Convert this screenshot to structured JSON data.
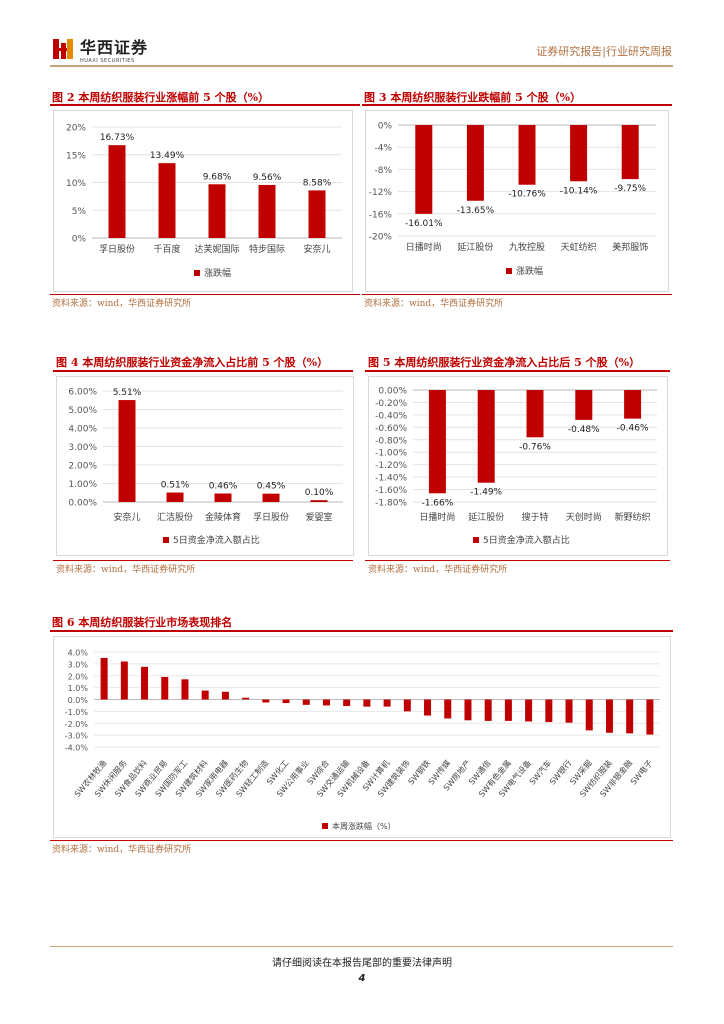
{
  "header": {
    "brand_cn": "华西证券",
    "brand_en": "HUAXI SECURITIES",
    "report_type": "证券研究报告|行业研究周报"
  },
  "colors": {
    "bar": "#c00000",
    "accent": "#c00000",
    "header": "#b07040"
  },
  "figures": {
    "fig2": {
      "title": "图 2 本周纺织服装行业涨幅前 5 个股（%）",
      "source": "资料来源：wind，华西证券研究所"
    },
    "fig3": {
      "title": "图 3 本周纺织服装行业跌幅前 5 个股（%）",
      "source": "资料来源：wind，华西证券研究所"
    },
    "fig4": {
      "title": "图 4 本周纺织服装行业资金净流入占比前 5 个股（%）",
      "source": "资料来源：wind，华西证券研究所"
    },
    "fig5": {
      "title": "图 5 本周纺织服装行业资金净流入占比后 5 个股（%）",
      "source": "资料来源：wind，华西证券研究所"
    },
    "fig6": {
      "title": "图 6 本周纺织服装行业市场表现排名",
      "source": "资料来源：wind，华西证券研究所"
    }
  },
  "chart_data": [
    {
      "id": "fig2",
      "type": "bar",
      "categories": [
        "孚日股份",
        "千百度",
        "达芙妮国际",
        "特步国际",
        "安奈儿"
      ],
      "values": [
        16.73,
        13.49,
        9.68,
        9.56,
        8.58
      ],
      "labels": [
        "16.73%",
        "13.49%",
        "9.68%",
        "9.56%",
        "8.58%"
      ],
      "yticks": [
        "20%",
        "15%",
        "10%",
        "5%",
        "0%"
      ],
      "ylim": [
        0,
        20
      ],
      "legend": "涨跌幅"
    },
    {
      "id": "fig3",
      "type": "bar",
      "categories": [
        "日播时尚",
        "延江股份",
        "九牧控股",
        "天虹纺织",
        "美邦服饰"
      ],
      "values": [
        -16.01,
        -13.65,
        -10.76,
        -10.14,
        -9.75
      ],
      "labels": [
        "-16.01%",
        "-13.65%",
        "-10.76%",
        "-10.14%",
        "-9.75%"
      ],
      "yticks": [
        "0%",
        "-4%",
        "-8%",
        "-12%",
        "-16%",
        "-20%"
      ],
      "ylim": [
        -20,
        0
      ],
      "legend": "涨跌幅"
    },
    {
      "id": "fig4",
      "type": "bar",
      "categories": [
        "安奈儿",
        "汇洁股份",
        "金陵体育",
        "孚日股份",
        "爱婴室"
      ],
      "values": [
        5.51,
        0.51,
        0.46,
        0.45,
        0.1
      ],
      "labels": [
        "5.51%",
        "0.51%",
        "0.46%",
        "0.45%",
        "0.10%"
      ],
      "yticks": [
        "6.00%",
        "5.00%",
        "4.00%",
        "3.00%",
        "2.00%",
        "1.00%",
        "0.00%"
      ],
      "ylim": [
        0,
        6
      ],
      "legend": "5日资金净流入额占比"
    },
    {
      "id": "fig5",
      "type": "bar",
      "categories": [
        "日播时尚",
        "延江股份",
        "搜于特",
        "天创时尚",
        "新野纺织"
      ],
      "values": [
        -1.66,
        -1.49,
        -0.76,
        -0.48,
        -0.46
      ],
      "labels": [
        "-1.66%",
        "-1.49%",
        "-0.76%",
        "-0.48%",
        "-0.46%"
      ],
      "yticks": [
        "0.00%",
        "-0.20%",
        "-0.40%",
        "-0.60%",
        "-0.80%",
        "-1.00%",
        "-1.20%",
        "-1.40%",
        "-1.60%",
        "-1.80%"
      ],
      "ylim": [
        -1.8,
        0
      ],
      "legend": "5日资金净流入额占比"
    },
    {
      "id": "fig6",
      "type": "bar",
      "categories": [
        "SW农林牧渔",
        "SW休闲服务",
        "SW食品饮料",
        "SW商业贸易",
        "SW国防军工",
        "SW建筑材料",
        "SW家用电器",
        "SW医药生物",
        "SW轻工制造",
        "SW化工",
        "SW公用事业",
        "SW综合",
        "SW交通运输",
        "SW机械设备",
        "SW计算机",
        "SW建筑装饰",
        "SW钢铁",
        "SW传媒",
        "SW房地产",
        "SW通信",
        "SW有色金属",
        "SW电气设备",
        "SW汽车",
        "SW银行",
        "SW采掘",
        "SW纺织服装",
        "SW非银金融",
        "SW电子"
      ],
      "values": [
        3.5,
        3.2,
        2.75,
        1.9,
        1.7,
        0.75,
        0.65,
        0.15,
        -0.25,
        -0.3,
        -0.45,
        -0.5,
        -0.55,
        -0.6,
        -0.6,
        -1.0,
        -1.35,
        -1.6,
        -1.75,
        -1.8,
        -1.8,
        -1.85,
        -1.9,
        -1.95,
        -2.6,
        -2.8,
        -2.85,
        -2.95
      ],
      "yticks": [
        "4.0%",
        "3.0%",
        "2.0%",
        "1.0%",
        "0.0%",
        "-1.0%",
        "-2.0%",
        "-3.0%",
        "-4.0%"
      ],
      "ylim": [
        -4,
        4
      ],
      "legend": "本周涨跌幅（%）"
    }
  ],
  "footer": {
    "disclaimer": "请仔细阅读在本报告尾部的重要法律声明",
    "page": "4"
  }
}
